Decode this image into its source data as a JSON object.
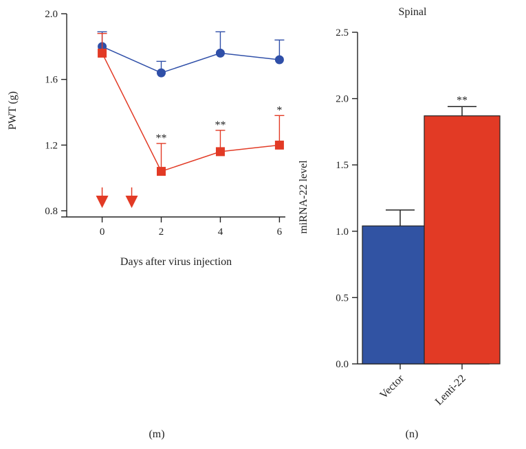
{
  "colors": {
    "blue": "#2f4fa8",
    "red": "#e23a25",
    "bar_blue": "#3153a3",
    "bar_red": "#e23a25",
    "ink": "#222222"
  },
  "panel_labels": {
    "left": "(m)",
    "right": "(n)"
  },
  "chart_data": [
    {
      "type": "line",
      "title": "",
      "xlabel": "Days after virus injection",
      "ylabel": "PWT (g)",
      "xlim": [
        -1.2,
        6.2
      ],
      "ylim": [
        0.8,
        2.0
      ],
      "xticks": [
        0,
        2,
        4,
        6
      ],
      "xtick_labels": [
        "0",
        "2",
        "4",
        "6"
      ],
      "yticks": [
        0.8,
        1.2,
        1.6,
        2.0
      ],
      "ytick_labels": [
        "0.8",
        "1.2",
        "1.6",
        "2.0"
      ],
      "x": [
        0,
        2,
        4,
        6
      ],
      "series": [
        {
          "marker": "circle",
          "color": "#2f4fa8",
          "values": [
            1.8,
            1.64,
            1.76,
            1.72
          ],
          "errors": [
            0.09,
            0.07,
            0.13,
            0.12
          ],
          "significance": [
            "",
            "",
            "",
            ""
          ]
        },
        {
          "marker": "square",
          "color": "#e23a25",
          "values": [
            1.76,
            1.04,
            1.16,
            1.2
          ],
          "errors": [
            0.12,
            0.17,
            0.13,
            0.18
          ],
          "significance": [
            "",
            "**",
            "**",
            "*"
          ]
        }
      ],
      "injection_arrows_x": [
        0,
        1
      ],
      "grid": false
    },
    {
      "type": "bar",
      "title": "Spinal",
      "xlabel": "",
      "ylabel": "miRNA-22 level",
      "categories": [
        "Vector",
        "Lenti-22"
      ],
      "values": [
        1.04,
        1.87
      ],
      "errors": [
        0.12,
        0.07
      ],
      "significance": [
        "",
        "**"
      ],
      "colors": [
        "#3153a3",
        "#e23a25"
      ],
      "ylim": [
        0.0,
        2.5
      ],
      "yticks": [
        0.0,
        0.5,
        1.0,
        1.5,
        2.0,
        2.5
      ],
      "ytick_labels": [
        "0.0",
        "0.5",
        "1.0",
        "1.5",
        "2.0",
        "2.5"
      ],
      "grid": false
    }
  ]
}
